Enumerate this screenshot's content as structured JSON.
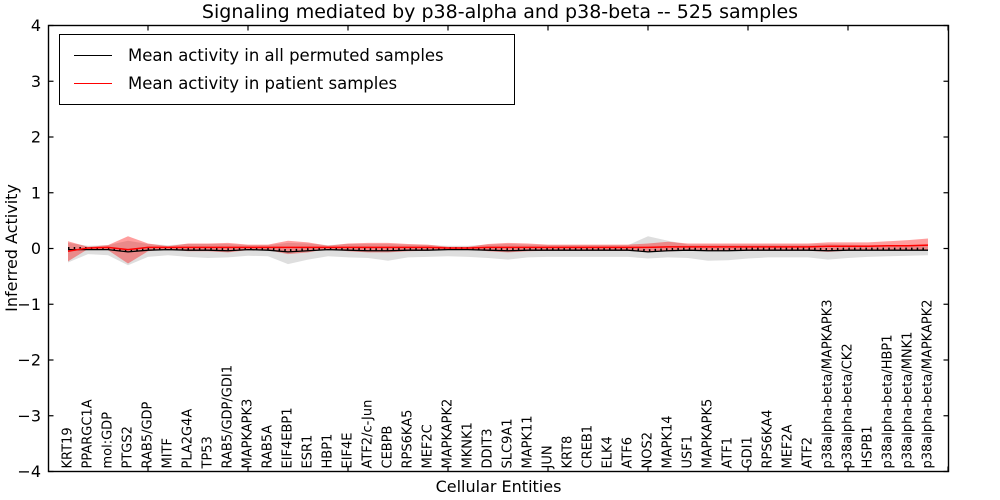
{
  "figure": {
    "title": "Signaling mediated by p38-alpha and p38-beta -- 525 samples",
    "xlabel": "Cellular Entities",
    "ylabel": "Inferred Activity"
  },
  "legend": {
    "items": [
      {
        "label": "Mean activity in all permuted samples",
        "color": "#000000"
      },
      {
        "label": "Mean activity in patient samples",
        "color": "#ff0000"
      }
    ]
  },
  "colors": {
    "permuted_line": "#000000",
    "patient_line": "#ff0000",
    "permuted_band": "rgba(0,0,0,0.13)",
    "patient_band": "rgba(255,0,0,0.38)",
    "axis": "#000000"
  },
  "chart_data": {
    "type": "line",
    "title": "Signaling mediated by p38-alpha and p38-beta -- 525 samples",
    "xlabel": "Cellular Entities",
    "ylabel": "Inferred Activity",
    "ylim": [
      -4,
      4
    ],
    "yticks": [
      4,
      3,
      2,
      1,
      0,
      -1,
      -2,
      -3,
      -4
    ],
    "yticklabels": [
      "4",
      "3",
      "2",
      "1",
      "0",
      "−1",
      "−2",
      "−3",
      "−4"
    ],
    "grid": false,
    "legend_position": "upper left",
    "categories": [
      "KRT19",
      "PPARGC1A",
      "mol:GDP",
      "PTGS2",
      "RAB5/GDP",
      "MITF",
      "PLA2G4A",
      "TP53",
      "RAB5/GDP/GDI1",
      "MAPKAPK3",
      "RAB5A",
      "EIF4EBP1",
      "ESR1",
      "HBP1",
      "EIF4E",
      "ATF2/c-Jun",
      "CEBPB",
      "RPS6KA5",
      "MEF2C",
      "MAPKAPK2",
      "MKNK1",
      "DDIT3",
      "SLC9A1",
      "MAPK11",
      "JUN",
      "KRT8",
      "CREB1",
      "ELK4",
      "ATF6",
      "NOS2",
      "MAPK14",
      "USF1",
      "MAPKAPK5",
      "ATF1",
      "GDI1",
      "RPS6KA4",
      "MEF2A",
      "ATF2",
      "p38alpha-beta/MAPKAPK3",
      "p38alpha-beta/CK2",
      "HSPB1",
      "p38alpha-beta/HBP1",
      "p38alpha-beta/MNK1",
      "p38alpha-beta/MAPKAPK2"
    ],
    "series": [
      {
        "name": "Mean activity in all permuted samples",
        "values": [
          -0.02,
          -0.02,
          -0.02,
          -0.06,
          -0.03,
          -0.02,
          -0.03,
          -0.03,
          -0.04,
          -0.02,
          -0.03,
          -0.06,
          -0.04,
          -0.02,
          -0.03,
          -0.04,
          -0.04,
          -0.03,
          -0.03,
          -0.02,
          -0.02,
          -0.03,
          -0.04,
          -0.03,
          -0.03,
          -0.03,
          -0.03,
          -0.03,
          -0.03,
          -0.06,
          -0.04,
          -0.03,
          -0.04,
          -0.04,
          -0.03,
          -0.03,
          -0.03,
          -0.03,
          -0.04,
          -0.03,
          -0.03,
          -0.03,
          -0.03,
          -0.03
        ]
      },
      {
        "name": "Mean activity in patient samples",
        "values": [
          -0.05,
          0.01,
          0.02,
          -0.02,
          0.02,
          0.02,
          0.02,
          0.02,
          0.02,
          0.02,
          0.02,
          0.02,
          0.02,
          0.02,
          0.02,
          0.02,
          0.02,
          0.02,
          0.02,
          0.01,
          0.01,
          0.02,
          0.02,
          0.02,
          0.02,
          0.02,
          0.02,
          0.02,
          0.02,
          0.02,
          0.03,
          0.03,
          0.03,
          0.03,
          0.03,
          0.03,
          0.03,
          0.03,
          0.04,
          0.04,
          0.04,
          0.05,
          0.05,
          0.06
        ]
      }
    ],
    "bands": [
      {
        "name": "permuted-samples-band",
        "upper": [
          0.1,
          0.05,
          0.06,
          0.14,
          0.08,
          0.06,
          0.08,
          0.08,
          0.08,
          0.06,
          0.06,
          0.1,
          0.09,
          0.06,
          0.08,
          0.08,
          0.08,
          0.07,
          0.06,
          0.05,
          0.05,
          0.07,
          0.08,
          0.07,
          0.06,
          0.06,
          0.06,
          0.06,
          0.06,
          0.22,
          0.14,
          0.07,
          0.07,
          0.07,
          0.07,
          0.07,
          0.07,
          0.07,
          0.08,
          0.07,
          0.06,
          0.06,
          0.06,
          0.05
        ],
        "lower": [
          -0.25,
          -0.1,
          -0.12,
          -0.3,
          -0.15,
          -0.12,
          -0.15,
          -0.17,
          -0.16,
          -0.13,
          -0.14,
          -0.28,
          -0.2,
          -0.14,
          -0.16,
          -0.17,
          -0.22,
          -0.16,
          -0.15,
          -0.14,
          -0.15,
          -0.17,
          -0.2,
          -0.16,
          -0.15,
          -0.15,
          -0.15,
          -0.15,
          -0.15,
          -0.18,
          -0.16,
          -0.17,
          -0.22,
          -0.21,
          -0.18,
          -0.16,
          -0.16,
          -0.16,
          -0.2,
          -0.17,
          -0.15,
          -0.14,
          -0.13,
          -0.12
        ]
      },
      {
        "name": "patient-samples-band",
        "upper": [
          0.13,
          0.03,
          0.06,
          0.22,
          0.09,
          0.04,
          0.09,
          0.09,
          0.1,
          0.07,
          0.07,
          0.14,
          0.11,
          0.05,
          0.09,
          0.1,
          0.1,
          0.08,
          0.07,
          0.03,
          0.03,
          0.08,
          0.1,
          0.09,
          0.07,
          0.07,
          0.07,
          0.07,
          0.07,
          0.09,
          0.12,
          0.09,
          0.09,
          0.09,
          0.09,
          0.09,
          0.09,
          0.09,
          0.11,
          0.11,
          0.11,
          0.13,
          0.15,
          0.18
        ],
        "lower": [
          -0.23,
          -0.01,
          -0.03,
          -0.27,
          -0.05,
          -0.01,
          -0.05,
          -0.05,
          -0.07,
          -0.03,
          -0.03,
          -0.1,
          -0.07,
          -0.01,
          -0.05,
          -0.07,
          -0.07,
          -0.05,
          -0.04,
          -0.01,
          -0.01,
          -0.05,
          -0.07,
          -0.05,
          -0.04,
          -0.04,
          -0.04,
          -0.04,
          -0.04,
          -0.06,
          -0.05,
          -0.04,
          -0.04,
          -0.04,
          -0.04,
          -0.04,
          -0.04,
          -0.04,
          -0.06,
          -0.04,
          -0.03,
          -0.02,
          -0.02,
          -0.02
        ]
      }
    ]
  }
}
